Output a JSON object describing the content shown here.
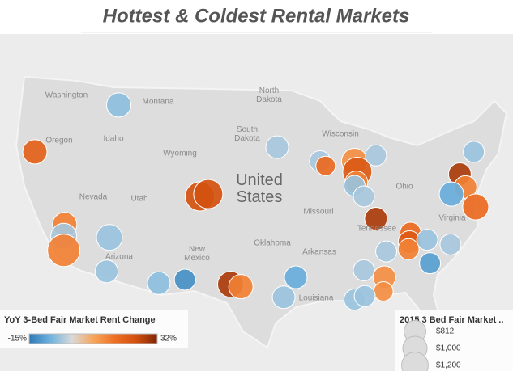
{
  "chart_data": {
    "type": "bubble-map",
    "title": "Hottest & Coldest Rental Markets",
    "map_labels": [
      "Washington",
      "Montana",
      "North Dakota",
      "Oregon",
      "Idaho",
      "South Dakota",
      "Wyoming",
      "Wisconsin",
      "Nevada",
      "Utah",
      "United States",
      "Missouri",
      "Ohio",
      "Arizona",
      "New Mexico",
      "Oklahoma",
      "Arkansas",
      "Tennessee",
      "Louisiana",
      "Virginia"
    ],
    "color_legend_title": "YoY 3-Bed Fair Market Rent Change",
    "size_legend_title": "2015 3 Bed Fair Market ..",
    "color_range": [
      {
        "value": -15,
        "label": "-15%"
      },
      {
        "value": 32,
        "label": "32%"
      }
    ],
    "colors": [
      "#2e79b5",
      "#6fb3df",
      "#d9d9d9",
      "#f7a65c",
      "#ef7023",
      "#d3500f",
      "#7f2704"
    ],
    "size_legend": [
      {
        "value": 812,
        "label": "$812"
      },
      {
        "value": 1000,
        "label": "$1,000"
      },
      {
        "value": 1200,
        "label": "$1,200"
      }
    ],
    "lon": [
      -114.0,
      -123.0,
      -119.8,
      -119.9,
      -119.9,
      -115.0,
      -115.3,
      -109.7,
      -106.9,
      -105.3,
      -104.4,
      -102.0,
      -100.9,
      -97.0,
      -95.0,
      -96.3,
      -92.4,
      -91.8,
      -88.7,
      -88.4,
      -88.5,
      -88.7,
      -87.7,
      -86.4,
      -86.4,
      -82.7,
      -82.8,
      -82.9,
      -80.9,
      -78.4,
      -80.6,
      -85.3,
      -87.7,
      -85.5,
      -85.6,
      -88.7,
      -87.6,
      -75.9,
      -77.4,
      -76.8,
      -78.3,
      -75.7
    ],
    "lat": [
      47.5,
      43.5,
      37.3,
      36.3,
      35.1,
      36.2,
      33.3,
      32.3,
      32.6,
      39.7,
      39.9,
      32.2,
      32.0,
      43.9,
      32.8,
      31.1,
      42.7,
      42.3,
      42.7,
      41.8,
      40.9,
      40.6,
      39.7,
      43.2,
      37.8,
      36.6,
      35.8,
      35.2,
      36.0,
      35.6,
      34.0,
      35.0,
      33.4,
      32.8,
      31.6,
      30.9,
      31.2,
      43.5,
      41.6,
      40.5,
      39.9,
      38.8
    ],
    "values": [
      -5,
      20,
      14,
      -3,
      14,
      -4,
      -4,
      -5,
      -12,
      24,
      24,
      28,
      14,
      -3,
      -8,
      -4,
      -3,
      18,
      12,
      22,
      14,
      -4,
      -3,
      -3,
      28,
      18,
      22,
      14,
      -4,
      -3,
      -10,
      -3,
      -3,
      12,
      12,
      -4,
      -4,
      -4,
      28,
      14,
      -8,
      18
    ],
    "sizes": [
      1000,
      1000,
      1000,
      1140,
      1780,
      1140,
      870,
      870,
      750,
      1440,
      1440,
      1140,
      1000,
      870,
      870,
      870,
      750,
      640,
      1140,
      1440,
      870,
      750,
      750,
      750,
      870,
      750,
      870,
      750,
      750,
      750,
      750,
      750,
      750,
      870,
      640,
      750,
      750,
      750,
      870,
      870,
      1000,
      1140
    ]
  }
}
